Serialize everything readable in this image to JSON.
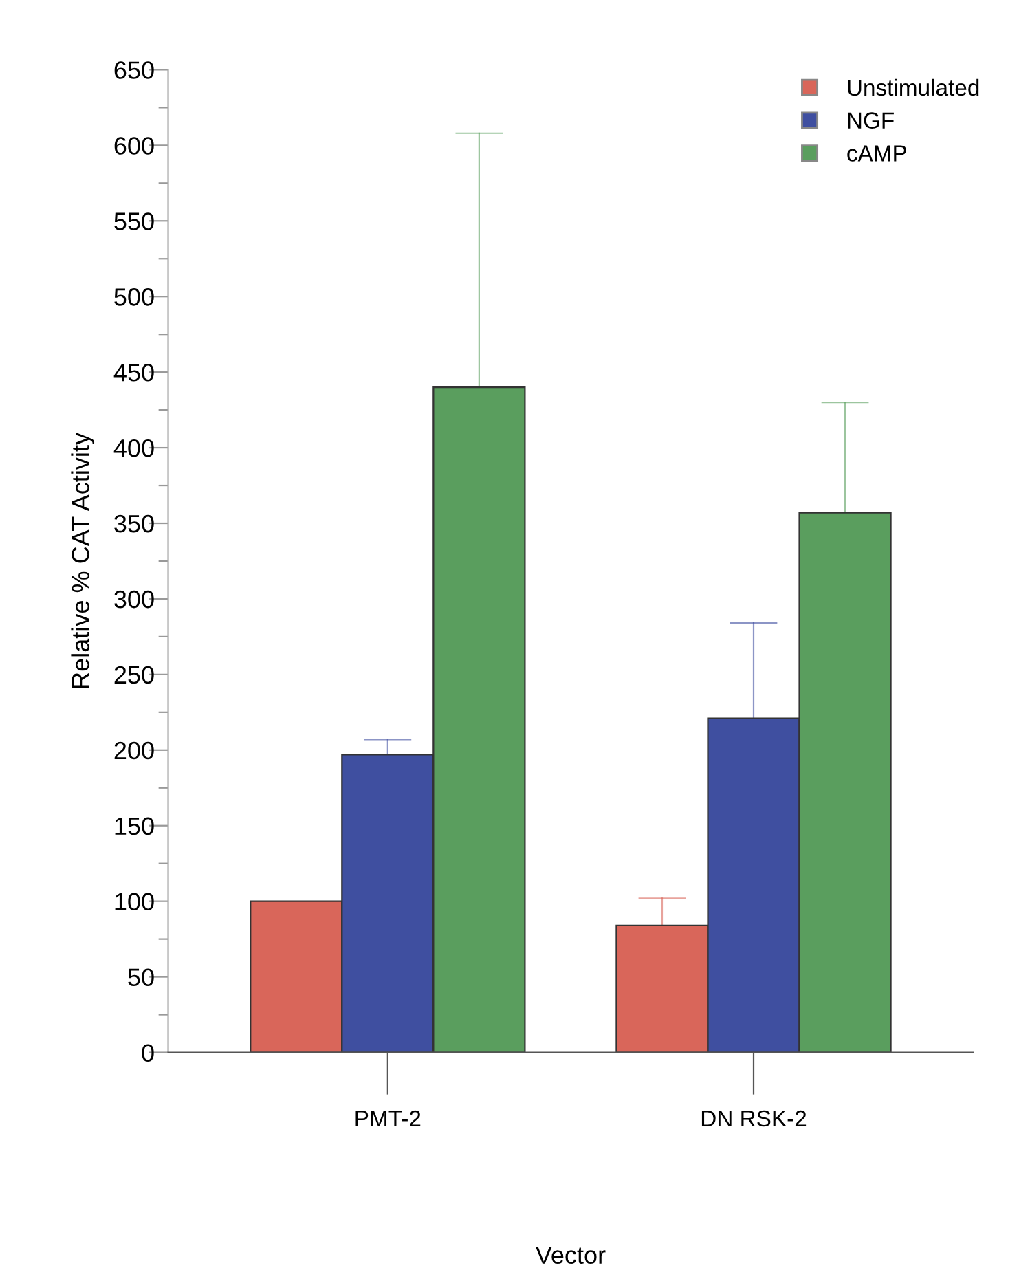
{
  "chart_data": {
    "type": "bar",
    "xlabel": "Vector",
    "ylabel": "Relative % CAT Activity",
    "categories": [
      "PMT-2",
      "DN RSK-2"
    ],
    "series": [
      {
        "name": "Unstimulated",
        "color": "#d9665a",
        "values": [
          100,
          84
        ],
        "errors": [
          null,
          [
            84,
            102
          ]
        ]
      },
      {
        "name": "NGF",
        "color": "#3f4fa0",
        "values": [
          197,
          221
        ],
        "errors": [
          [
            197,
            207
          ],
          [
            221,
            284
          ]
        ]
      },
      {
        "name": "cAMP",
        "color": "#5a9e5e",
        "values": [
          440,
          357
        ],
        "errors": [
          [
            440,
            608
          ],
          [
            357,
            430
          ]
        ]
      }
    ],
    "ylim": [
      0,
      650
    ],
    "yticks": [
      0,
      {
        "value": 25,
        "label": null
      },
      50,
      {
        "value": 75,
        "label": null
      },
      100,
      {
        "value": 125,
        "label": null
      },
      150,
      {
        "value": 175,
        "label": null
      },
      200,
      {
        "value": 225,
        "label": null
      },
      250,
      {
        "value": 275,
        "label": null
      },
      300,
      {
        "value": 325,
        "label": null
      },
      350,
      {
        "value": 375,
        "label": null
      },
      400,
      {
        "value": 425,
        "label": null
      },
      450,
      {
        "value": 475,
        "label": null
      },
      500,
      {
        "value": 525,
        "label": null
      },
      550,
      {
        "value": 575,
        "label": null
      },
      600,
      {
        "value": 625,
        "label": null
      },
      650
    ],
    "legend": "top right",
    "grid": false
  }
}
